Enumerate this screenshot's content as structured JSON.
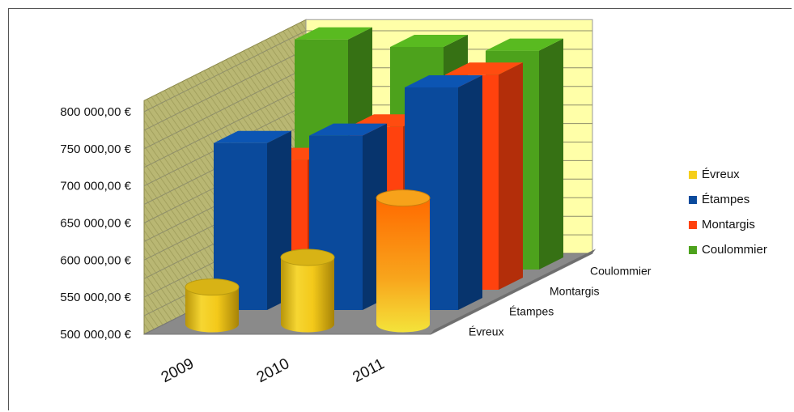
{
  "chart_data": {
    "type": "bar",
    "categories": [
      "2009",
      "2010",
      "2011"
    ],
    "series": [
      {
        "name": "Évreux",
        "values": [
          550000,
          590000,
          670000
        ],
        "color": "#F5CE1B"
      },
      {
        "name": "Étampes",
        "values": [
          725000,
          735000,
          800000
        ],
        "color": "#0A4A9C"
      },
      {
        "name": "Montargis",
        "values": [
          675000,
          720000,
          790000
        ],
        "color": "#FF420E"
      },
      {
        "name": "Coulommier",
        "values": [
          810000,
          800000,
          795000
        ],
        "color": "#4DA21C"
      }
    ],
    "ylim": [
      500000,
      800000
    ],
    "yticks": [
      "500 000,00 €",
      "550 000,00 €",
      "600 000,00 €",
      "650 000,00 €",
      "700 000,00 €",
      "750 000,00 €",
      "800 000,00 €"
    ],
    "depth_labels": [
      "Évreux",
      "Étampes",
      "Montargis",
      "Coulommier"
    ],
    "legend": [
      "Évreux",
      "Étampes",
      "Montargis",
      "Coulommier"
    ],
    "legend_position": "right",
    "grid": true,
    "style": "3d"
  }
}
